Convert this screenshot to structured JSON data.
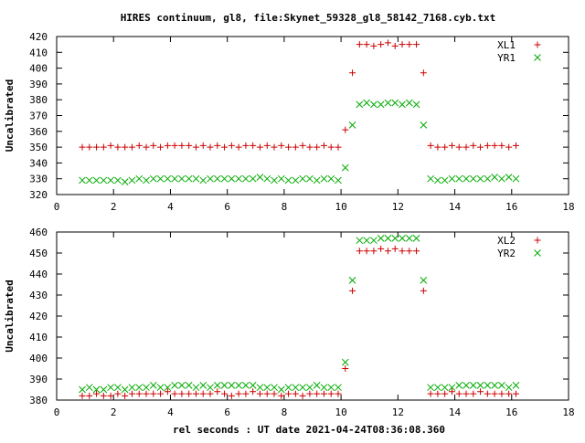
{
  "title": "HIRES continuum, gl8, file:Skynet_59328_gl8_58142_7168.cyb.txt",
  "xlabel": "rel seconds : UT date 2021-04-24T08:36:08.360",
  "colors": {
    "red": "#cc0000",
    "green": "#00aa00"
  },
  "chart_data": [
    {
      "type": "scatter",
      "ylabel": "Uncalibrated",
      "xlim": [
        0,
        18
      ],
      "ylim": [
        320,
        420
      ],
      "xticks": [
        0,
        2,
        4,
        6,
        8,
        10,
        12,
        14,
        16,
        18
      ],
      "yticks": [
        320,
        330,
        340,
        350,
        360,
        370,
        380,
        390,
        400,
        410,
        420
      ],
      "legend_position": "top-right",
      "series": [
        {
          "name": "XL1",
          "marker": "plus",
          "color": "#cc0000",
          "x": [
            0.9,
            1.15,
            1.4,
            1.65,
            1.9,
            2.15,
            2.4,
            2.65,
            2.9,
            3.15,
            3.4,
            3.65,
            3.9,
            4.15,
            4.4,
            4.65,
            4.9,
            5.15,
            5.4,
            5.65,
            5.9,
            6.15,
            6.4,
            6.65,
            6.9,
            7.15,
            7.4,
            7.65,
            7.9,
            8.15,
            8.4,
            8.65,
            8.9,
            9.15,
            9.4,
            9.65,
            9.9,
            10.15,
            10.4,
            10.65,
            10.9,
            11.15,
            11.4,
            11.65,
            11.9,
            12.15,
            12.4,
            12.65,
            12.9,
            13.15,
            13.4,
            13.65,
            13.9,
            14.15,
            14.4,
            14.65,
            14.9,
            15.15,
            15.4,
            15.65,
            15.9,
            16.15
          ],
          "y": [
            350,
            350,
            350,
            350,
            351,
            350,
            350,
            350,
            351,
            350,
            351,
            350,
            351,
            351,
            351,
            351,
            350,
            351,
            350,
            351,
            350,
            351,
            350,
            351,
            351,
            350,
            351,
            350,
            351,
            350,
            350,
            351,
            350,
            350,
            351,
            350,
            350,
            361,
            397,
            415,
            415,
            414,
            415,
            416,
            414,
            415,
            415,
            415,
            397,
            351,
            350,
            350,
            351,
            350,
            350,
            351,
            350,
            351,
            351,
            351,
            350,
            351
          ]
        },
        {
          "name": "YR1",
          "marker": "cross",
          "color": "#00aa00",
          "x": [
            0.9,
            1.15,
            1.4,
            1.65,
            1.9,
            2.15,
            2.4,
            2.65,
            2.9,
            3.15,
            3.4,
            3.65,
            3.9,
            4.15,
            4.4,
            4.65,
            4.9,
            5.15,
            5.4,
            5.65,
            5.9,
            6.15,
            6.4,
            6.65,
            6.9,
            7.15,
            7.4,
            7.65,
            7.9,
            8.15,
            8.4,
            8.65,
            8.9,
            9.15,
            9.4,
            9.65,
            9.9,
            10.15,
            10.4,
            10.65,
            10.9,
            11.15,
            11.4,
            11.65,
            11.9,
            12.15,
            12.4,
            12.65,
            12.9,
            13.15,
            13.4,
            13.65,
            13.9,
            14.15,
            14.4,
            14.65,
            14.9,
            15.15,
            15.4,
            15.65,
            15.9,
            16.15
          ],
          "y": [
            329,
            329,
            329,
            329,
            329,
            329,
            328,
            329,
            330,
            329,
            330,
            330,
            330,
            330,
            330,
            330,
            330,
            329,
            330,
            330,
            330,
            330,
            330,
            330,
            330,
            331,
            330,
            329,
            330,
            329,
            329,
            330,
            330,
            329,
            330,
            330,
            329,
            337,
            364,
            377,
            378,
            377,
            377,
            378,
            378,
            377,
            378,
            377,
            364,
            330,
            329,
            329,
            330,
            330,
            330,
            330,
            330,
            330,
            331,
            330,
            331,
            330
          ]
        }
      ]
    },
    {
      "type": "scatter",
      "ylabel": "Uncalibrated",
      "xlim": [
        0,
        18
      ],
      "ylim": [
        380,
        460
      ],
      "xticks": [
        0,
        2,
        4,
        6,
        8,
        10,
        12,
        14,
        16,
        18
      ],
      "yticks": [
        380,
        390,
        400,
        410,
        420,
        430,
        440,
        450,
        460
      ],
      "legend_position": "top-right",
      "series": [
        {
          "name": "XL2",
          "marker": "plus",
          "color": "#cc0000",
          "x": [
            0.9,
            1.15,
            1.4,
            1.65,
            1.9,
            2.15,
            2.4,
            2.65,
            2.9,
            3.15,
            3.4,
            3.65,
            3.9,
            4.15,
            4.4,
            4.65,
            4.9,
            5.15,
            5.4,
            5.65,
            5.9,
            6.15,
            6.4,
            6.65,
            6.9,
            7.15,
            7.4,
            7.65,
            7.9,
            8.15,
            8.4,
            8.65,
            8.9,
            9.15,
            9.4,
            9.65,
            9.9,
            10.15,
            10.4,
            10.65,
            10.9,
            11.15,
            11.4,
            11.65,
            11.9,
            12.15,
            12.4,
            12.65,
            12.9,
            13.15,
            13.4,
            13.65,
            13.9,
            14.15,
            14.4,
            14.65,
            14.9,
            15.15,
            15.4,
            15.65,
            15.9,
            16.15
          ],
          "y": [
            382,
            382,
            383,
            382,
            382,
            383,
            382,
            383,
            383,
            383,
            383,
            383,
            384,
            383,
            383,
            383,
            383,
            383,
            383,
            384,
            383,
            382,
            383,
            383,
            384,
            383,
            383,
            383,
            382,
            383,
            383,
            382,
            383,
            383,
            383,
            383,
            383,
            395,
            432,
            451,
            451,
            451,
            452,
            451,
            452,
            451,
            451,
            451,
            432,
            383,
            383,
            383,
            384,
            383,
            383,
            383,
            384,
            383,
            383,
            383,
            383,
            383
          ]
        },
        {
          "name": "YR2",
          "marker": "cross",
          "color": "#00aa00",
          "x": [
            0.9,
            1.15,
            1.4,
            1.65,
            1.9,
            2.15,
            2.4,
            2.65,
            2.9,
            3.15,
            3.4,
            3.65,
            3.9,
            4.15,
            4.4,
            4.65,
            4.9,
            5.15,
            5.4,
            5.65,
            5.9,
            6.15,
            6.4,
            6.65,
            6.9,
            7.15,
            7.4,
            7.65,
            7.9,
            8.15,
            8.4,
            8.65,
            8.9,
            9.15,
            9.4,
            9.65,
            9.9,
            10.15,
            10.4,
            10.65,
            10.9,
            11.15,
            11.4,
            11.65,
            11.9,
            12.15,
            12.4,
            12.65,
            12.9,
            13.15,
            13.4,
            13.65,
            13.9,
            14.15,
            14.4,
            14.65,
            14.9,
            15.15,
            15.4,
            15.65,
            15.9,
            16.15
          ],
          "y": [
            385,
            386,
            385,
            385,
            386,
            386,
            385,
            386,
            386,
            386,
            387,
            386,
            386,
            387,
            387,
            387,
            386,
            387,
            386,
            387,
            387,
            387,
            387,
            387,
            387,
            386,
            386,
            386,
            385,
            386,
            386,
            386,
            386,
            387,
            386,
            386,
            386,
            398,
            437,
            456,
            456,
            456,
            457,
            457,
            457,
            457,
            457,
            457,
            437,
            386,
            386,
            386,
            386,
            387,
            387,
            387,
            387,
            387,
            387,
            387,
            386,
            387
          ]
        }
      ]
    }
  ]
}
